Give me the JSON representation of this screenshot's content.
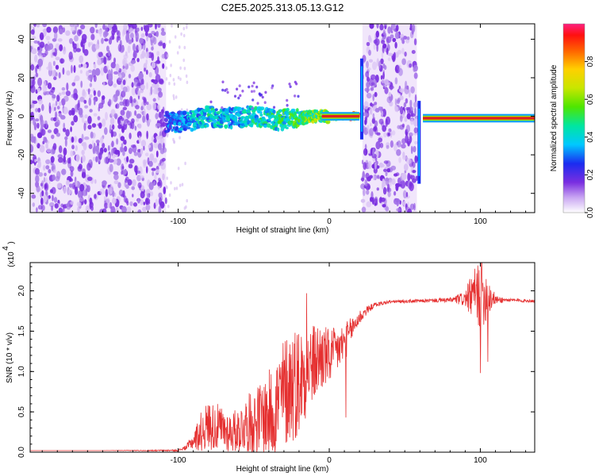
{
  "title": "C2E5.2025.313.05.13.G12",
  "colors": {
    "snr_line": "#e53030",
    "cluster": "#7a2ee0",
    "cluster_light": "#d8c0f4",
    "zero_band": "#e02020"
  },
  "chart_data": [
    {
      "type": "heatmap",
      "name": "spectrogram",
      "xlabel": "Height of straight line (km)",
      "ylabel": "Frequency (Hz)",
      "xlim": [
        -198,
        136
      ],
      "ylim": [
        -50,
        48
      ],
      "xticks": [
        -100,
        0,
        100
      ],
      "xtick_labels": [
        "-100",
        "0",
        "100"
      ],
      "yticks": [
        -40,
        -20,
        0,
        20,
        40
      ],
      "ytick_labels": [
        "-40",
        "-20",
        "0",
        "20",
        "40"
      ],
      "noise_regions_km": [
        [
          -198,
          -108
        ],
        [
          22,
          58
        ]
      ],
      "ridge": {
        "x": [
          -108,
          -95,
          -80,
          -65,
          -50,
          -35,
          -20,
          -5,
          5,
          15,
          20,
          58,
          62,
          80,
          100,
          120,
          136
        ],
        "y": [
          -3,
          -3,
          0,
          -1,
          0,
          -2,
          -1,
          0,
          0,
          0,
          0,
          0,
          -1,
          -1,
          -1,
          -1,
          -1
        ],
        "amplitude": [
          0.35,
          0.4,
          0.5,
          0.45,
          0.5,
          0.55,
          0.6,
          0.7,
          0.85,
          0.95,
          0.98,
          0.9,
          0.95,
          0.98,
          0.98,
          0.98,
          0.98
        ]
      },
      "colorbar": {
        "label": "Normalized spectral amplitude",
        "range": [
          0,
          1
        ],
        "ticks": [
          0.0,
          0.2,
          0.4,
          0.6,
          0.8
        ],
        "tick_labels": [
          "0.0",
          "0.2",
          "0.4",
          "0.6",
          "0.8"
        ]
      }
    },
    {
      "type": "line",
      "name": "snr",
      "xlabel": "Height of straight line (km)",
      "ylabel": "SNR (10 * v/v)",
      "y_multiplier": "(x10",
      "y_multiplier_exp": "4",
      "xlim": [
        -198,
        136
      ],
      "ylim": [
        0,
        2.35
      ],
      "xticks": [
        -100,
        0,
        100
      ],
      "xtick_labels": [
        "-100",
        "0",
        "100"
      ],
      "yticks": [
        0.0,
        0.5,
        1.0,
        1.5,
        2.0
      ],
      "ytick_labels": [
        "0.0",
        "0.5",
        "1.0",
        "1.5",
        "2.0"
      ],
      "envelope": {
        "x": [
          -198,
          -150,
          -100,
          -95,
          -90,
          -85,
          -80,
          -75,
          -70,
          -65,
          -60,
          -55,
          -50,
          -45,
          -40,
          -35,
          -30,
          -25,
          -20,
          -15,
          -10,
          -5,
          0,
          5,
          10,
          15,
          20,
          25,
          30,
          40,
          60,
          80,
          90,
          95,
          100,
          105,
          110,
          120,
          136
        ],
        "base": [
          0.02,
          0.02,
          0.02,
          0.05,
          0.12,
          0.2,
          0.28,
          0.25,
          0.22,
          0.2,
          0.22,
          0.28,
          0.3,
          0.35,
          0.35,
          0.45,
          0.6,
          0.7,
          0.75,
          0.9,
          1.0,
          1.1,
          1.1,
          1.2,
          1.3,
          1.5,
          1.65,
          1.75,
          1.82,
          1.86,
          1.87,
          1.88,
          1.88,
          1.88,
          1.88,
          1.88,
          1.88,
          1.88,
          1.87
        ],
        "amp": [
          0.0,
          0.0,
          0.01,
          0.03,
          0.1,
          0.25,
          0.3,
          0.3,
          0.28,
          0.25,
          0.28,
          0.35,
          0.4,
          0.45,
          0.55,
          0.65,
          0.7,
          0.75,
          0.7,
          0.55,
          0.5,
          0.45,
          0.35,
          0.3,
          0.25,
          0.15,
          0.1,
          0.05,
          0.03,
          0.02,
          0.02,
          0.03,
          0.1,
          0.3,
          0.45,
          0.3,
          0.05,
          0.02,
          0.02
        ]
      },
      "features": [
        {
          "x": 101,
          "y": 2.35
        },
        {
          "x": 100,
          "y": 0.98
        },
        {
          "x": 105,
          "y": 1.12
        },
        {
          "x": 11,
          "y": 0.43
        },
        {
          "x": -15,
          "y": 1.97
        }
      ]
    }
  ]
}
